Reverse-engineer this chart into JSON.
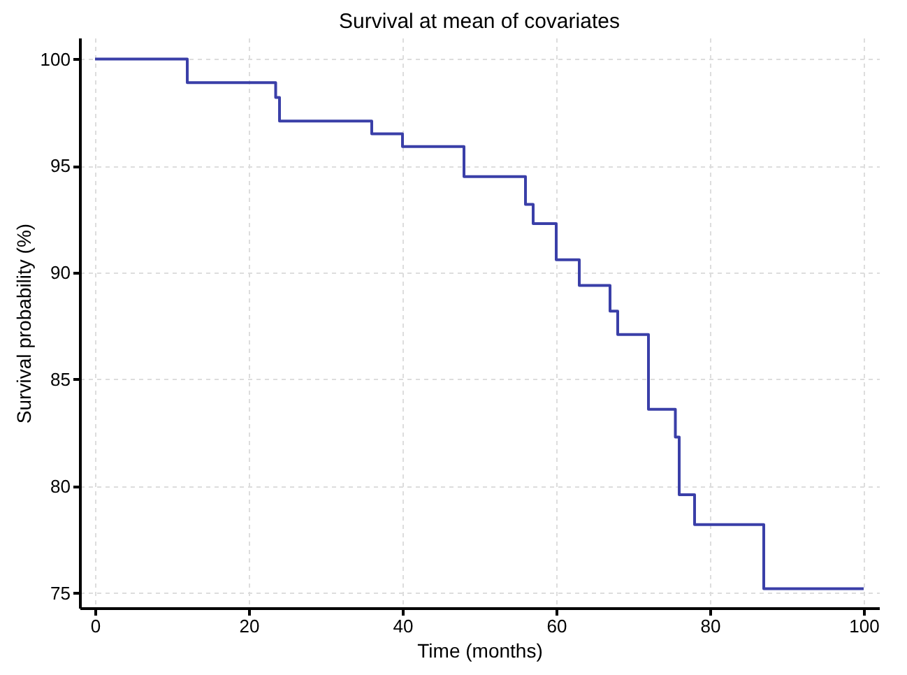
{
  "chart_data": {
    "type": "step",
    "title": "Survival at mean of covariates",
    "xlabel": "Time (months)",
    "ylabel": "Survival probability (%)",
    "x": [
      0,
      12,
      23.5,
      24,
      36,
      40,
      48,
      56,
      57,
      60,
      63,
      67,
      68,
      72,
      75.5,
      76,
      78,
      87,
      100
    ],
    "series": [
      {
        "color": "#3a3fa8",
        "values": [
          100,
          98.9,
          98.2,
          97.1,
          96.5,
          95.9,
          94.5,
          93.2,
          92.3,
          90.6,
          89.4,
          88.2,
          87.1,
          83.6,
          82.3,
          79.6,
          78.2,
          75.2,
          75.2
        ]
      }
    ],
    "xlim": [
      -2,
      102
    ],
    "ylim": [
      74.3,
      101
    ],
    "xticks": [
      0,
      20,
      40,
      60,
      80,
      100
    ],
    "yticks": [
      75,
      80,
      85,
      90,
      95,
      100
    ],
    "grid": true,
    "line_style": "solid",
    "marker": "none",
    "legend": false
  }
}
